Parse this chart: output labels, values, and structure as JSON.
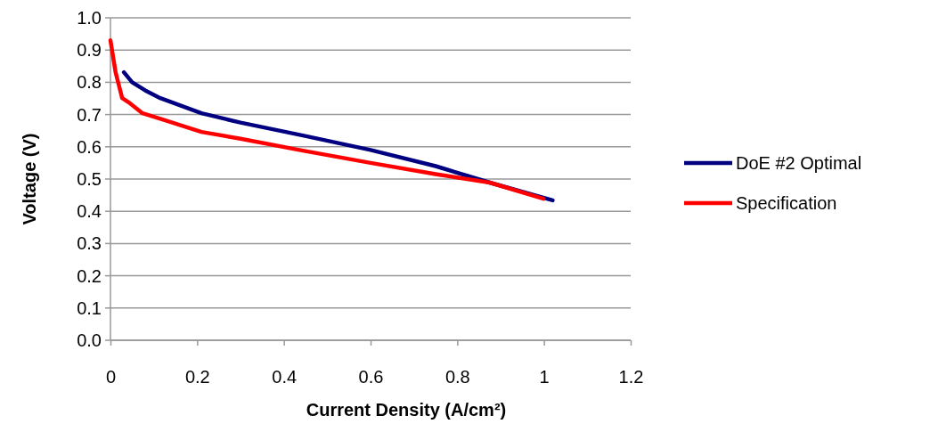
{
  "chart_data": {
    "type": "line",
    "xlabel": "Current Density (A/cm²)",
    "ylabel": "Voltage (V)",
    "xlim": [
      0,
      1.2
    ],
    "xticks": [
      0,
      0.2,
      0.4,
      0.6,
      0.8,
      1,
      1.2
    ],
    "ylim": [
      0,
      1
    ],
    "yticks": [
      {
        "value": 0,
        "label": "0.0"
      },
      {
        "value": 0.1,
        "label": "0.1"
      },
      {
        "value": 0.2,
        "label": "0.2"
      },
      {
        "value": 0.3,
        "label": "0.3"
      },
      {
        "value": 0.4,
        "label": "0.4"
      },
      {
        "value": 0.5,
        "label": "0.5"
      },
      {
        "value": 0.6,
        "label": "0.6"
      },
      {
        "value": 0.7,
        "label": "0.7"
      },
      {
        "value": 0.8,
        "label": "0.8"
      },
      {
        "value": 0.9,
        "label": "0.9"
      },
      {
        "value": 1,
        "label": "1.0"
      }
    ],
    "grid": "y",
    "legend": "right",
    "marker": "none",
    "line_style": "solid",
    "series": [
      {
        "name": "DoE #2 Optimal",
        "color": "#000080",
        "x": [
          0.031,
          0.05,
          0.08,
          0.115,
          0.21,
          0.3,
          0.444,
          0.6,
          0.75,
          0.875,
          1.02
        ],
        "values": [
          0.831,
          0.8,
          0.775,
          0.751,
          0.704,
          0.675,
          0.635,
          0.59,
          0.54,
          0.489,
          0.434
        ]
      },
      {
        "name": "Specification",
        "color": "#ff0000",
        "x": [
          0,
          0.012,
          0.027,
          0.045,
          0.074,
          0.12,
          0.21,
          0.3,
          0.444,
          0.6,
          0.75,
          0.875,
          0.999
        ],
        "values": [
          0.93,
          0.83,
          0.751,
          0.735,
          0.704,
          0.685,
          0.646,
          0.625,
          0.588,
          0.55,
          0.515,
          0.489,
          0.439
        ]
      }
    ]
  }
}
